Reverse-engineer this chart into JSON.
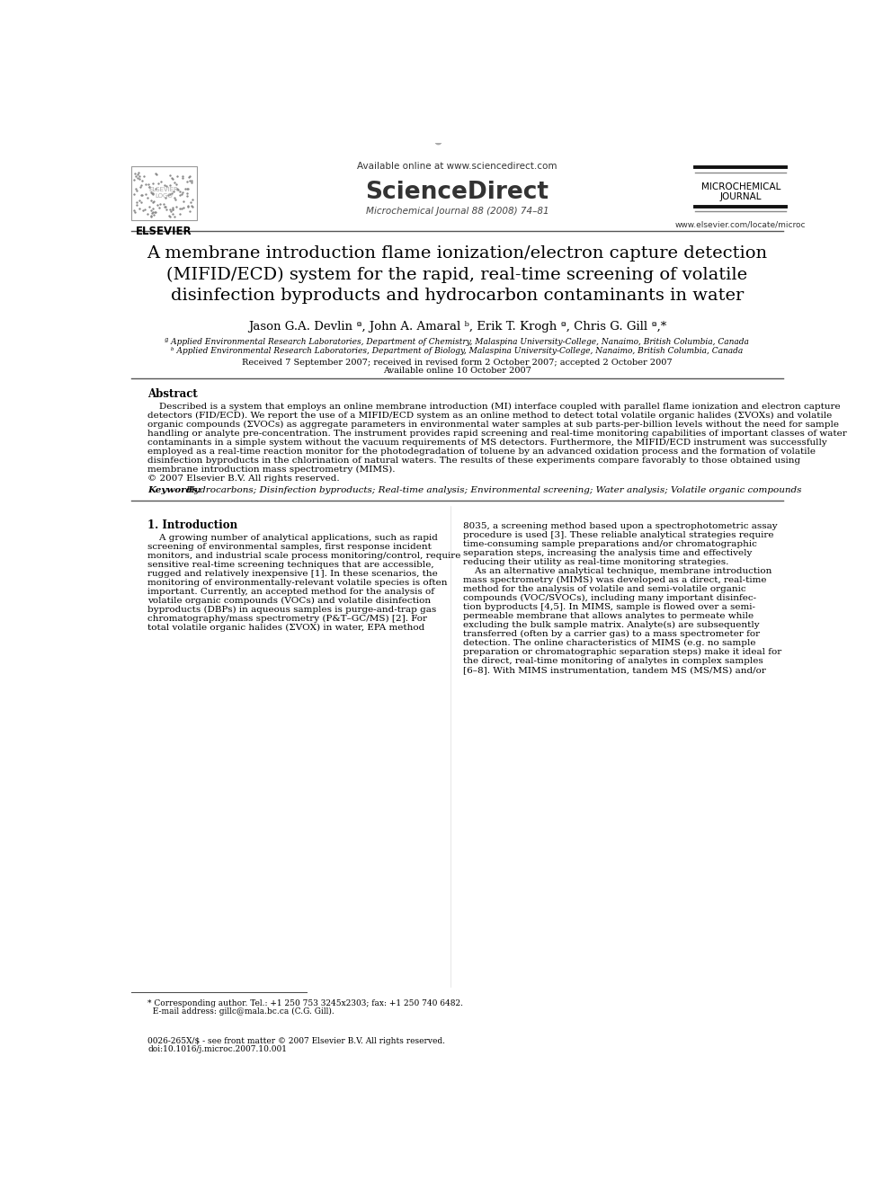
{
  "bg_color": "#ffffff",
  "header": {
    "available_online": "Available online at www.sciencedirect.com",
    "journal_name_center": "Microchemical Journal 88 (2008) 74–81",
    "sciencedirect_text": "ScienceDirect",
    "microchemical": "MICROCHEMICAL",
    "journal_word": "JOURNAL",
    "website": "www.elsevier.com/locate/microc",
    "elsevier_text": "ELSEVIER"
  },
  "title": "A membrane introduction flame ionization/electron capture detection\n(MIFID/ECD) system for the rapid, real-time screening of volatile\ndisinfection byproducts and hydrocarbon contaminants in water",
  "authors": "Jason G.A. Devlin ª, John A. Amaral ᵇ, Erik T. Krogh ª, Chris G. Gill ª,*",
  "affil_a": "ª Applied Environmental Research Laboratories, Department of Chemistry, Malaspina University-College, Nanaimo, British Columbia, Canada",
  "affil_b": "ᵇ Applied Environmental Research Laboratories, Department of Biology, Malaspina University-College, Nanaimo, British Columbia, Canada",
  "received": "Received 7 September 2007; received in revised form 2 October 2007; accepted 2 October 2007",
  "available_online_date": "Available online 10 October 2007",
  "abstract_label": "Abstract",
  "keywords_label": "Keywords:",
  "keywords_text": " Hydrocarbons; Disinfection byproducts; Real-time analysis; Environmental screening; Water analysis; Volatile organic compounds",
  "section1_title": "1. Introduction",
  "abstract_lines": [
    "    Described is a system that employs an online membrane introduction (MI) interface coupled with parallel flame ionization and electron capture",
    "detectors (FID/ECD). We report the use of a MIFID/ECD system as an online method to detect total volatile organic halides (ΣVOXs) and volatile",
    "organic compounds (ΣVOCs) as aggregate parameters in environmental water samples at sub parts-per-billion levels without the need for sample",
    "handling or analyte pre-concentration. The instrument provides rapid screening and real-time monitoring capabilities of important classes of water",
    "contaminants in a simple system without the vacuum requirements of MS detectors. Furthermore, the MIFID/ECD instrument was successfully",
    "employed as a real-time reaction monitor for the photodegradation of toluene by an advanced oxidation process and the formation of volatile",
    "disinfection byproducts in the chlorination of natural waters. The results of these experiments compare favorably to those obtained using",
    "membrane introduction mass spectrometry (MIMS).",
    "© 2007 Elsevier B.V. All rights reserved."
  ],
  "intro1_lines": [
    "    A growing number of analytical applications, such as rapid",
    "screening of environmental samples, first response incident",
    "monitors, and industrial scale process monitoring/control, require",
    "sensitive real-time screening techniques that are accessible,",
    "rugged and relatively inexpensive [1]. In these scenarios, the",
    "monitoring of environmentally-relevant volatile species is often",
    "important. Currently, an accepted method for the analysis of",
    "volatile organic compounds (VOCs) and volatile disinfection",
    "byproducts (DBPs) in aqueous samples is purge-and-trap gas",
    "chromatography/mass spectrometry (P&T–GC/MS) [2]. For",
    "total volatile organic halides (ΣVOX) in water, EPA method"
  ],
  "intro2_lines": [
    "8035, a screening method based upon a spectrophotometric assay",
    "procedure is used [3]. These reliable analytical strategies require",
    "time-consuming sample preparations and/or chromatographic",
    "separation steps, increasing the analysis time and effectively",
    "reducing their utility as real-time monitoring strategies.",
    "    As an alternative analytical technique, membrane introduction",
    "mass spectrometry (MIMS) was developed as a direct, real-time",
    "method for the analysis of volatile and semi-volatile organic",
    "compounds (VOC/SVOCs), including many important disinfec-",
    "tion byproducts [4,5]. In MIMS, sample is flowed over a semi-",
    "permeable membrane that allows analytes to permeate while",
    "excluding the bulk sample matrix. Analyte(s) are subsequently",
    "transferred (often by a carrier gas) to a mass spectrometer for",
    "detection. The online characteristics of MIMS (e.g. no sample",
    "preparation or chromatographic separation steps) make it ideal for",
    "the direct, real-time monitoring of analytes in complex samples",
    "[6–8]. With MIMS instrumentation, tandem MS (MS/MS) and/or"
  ],
  "footer_left1": "* Corresponding author. Tel.: +1 250 753 3245x2303; fax: +1 250 740 6482.",
  "footer_left2": "  E-mail address: gillc@mala.bc.ca (C.G. Gill).",
  "footer_bottom1": "0026-265X/$ - see front matter © 2007 Elsevier B.V. All rights reserved.",
  "footer_bottom2": "doi:10.1016/j.microc.2007.10.001"
}
